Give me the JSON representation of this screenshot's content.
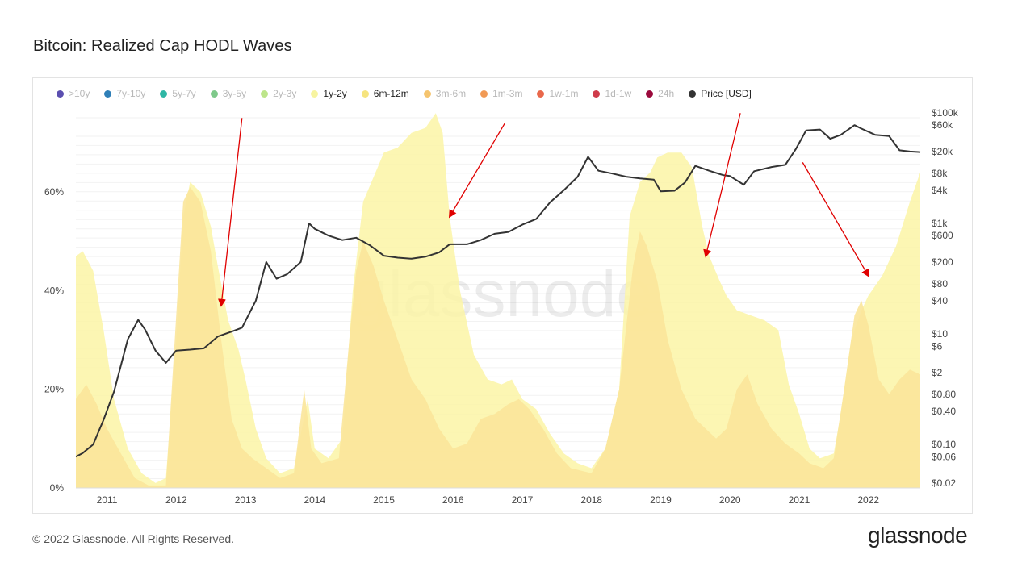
{
  "title": "Bitcoin: Realized Cap HODL Waves",
  "footer": "© 2022 Glassnode. All Rights Reserved.",
  "brand": "glassnode",
  "watermark": "glassnode",
  "legend": [
    {
      "label": ">10y",
      "color": "#5b4fb0",
      "active": false
    },
    {
      "label": "7y-10y",
      "color": "#2f7fb7",
      "active": false
    },
    {
      "label": "5y-7y",
      "color": "#2fb7a5",
      "active": false
    },
    {
      "label": "3y-5y",
      "color": "#7ec98a",
      "active": false
    },
    {
      "label": "2y-3y",
      "color": "#bde58a",
      "active": false
    },
    {
      "label": "1y-2y",
      "color": "#f7f4a0",
      "active": true
    },
    {
      "label": "6m-12m",
      "color": "#f6e47f",
      "active": true
    },
    {
      "label": "3m-6m",
      "color": "#f5c46e",
      "active": false
    },
    {
      "label": "1m-3m",
      "color": "#f19a55",
      "active": false
    },
    {
      "label": "1w-1m",
      "color": "#e9684b",
      "active": false
    },
    {
      "label": "1d-1w",
      "color": "#cf3b4a",
      "active": false
    },
    {
      "label": "24h",
      "color": "#9b0a3c",
      "active": false
    },
    {
      "label": "Price [USD]",
      "color": "#333333",
      "active": true
    }
  ],
  "chart_data": {
    "type": "area",
    "title": "Bitcoin: Realized Cap HODL Waves",
    "xlabel": "",
    "ylabel": "",
    "x_ticks": [
      "2011",
      "2012",
      "2013",
      "2014",
      "2015",
      "2016",
      "2017",
      "2018",
      "2019",
      "2020",
      "2021",
      "2022"
    ],
    "x_range": [
      2010.55,
      2022.75
    ],
    "y_left_ticks": [
      "0%",
      "20%",
      "40%",
      "60%"
    ],
    "y_left_range": [
      0,
      78
    ],
    "y_right_ticks": [
      "$0.02",
      "$0.06",
      "$0.10",
      "$0.40",
      "$0.80",
      "$2",
      "$6",
      "$10",
      "$40",
      "$80",
      "$200",
      "$600",
      "$1k",
      "$4k",
      "$8k",
      "$20k",
      "$60k",
      "$100k"
    ],
    "y_right_range_log": [
      0.02,
      100000
    ],
    "grid": true,
    "series": [
      {
        "name": "1y-2y",
        "color": "#fbf5a6",
        "unit": "%",
        "points": [
          [
            2010.55,
            47
          ],
          [
            2010.65,
            48
          ],
          [
            2010.8,
            44
          ],
          [
            2010.95,
            32
          ],
          [
            2011.1,
            18
          ],
          [
            2011.3,
            8
          ],
          [
            2011.5,
            3
          ],
          [
            2011.7,
            1
          ],
          [
            2011.85,
            2
          ],
          [
            2012.0,
            30
          ],
          [
            2012.1,
            55
          ],
          [
            2012.2,
            62
          ],
          [
            2012.35,
            60
          ],
          [
            2012.5,
            53
          ],
          [
            2012.6,
            45
          ],
          [
            2012.75,
            34
          ],
          [
            2012.9,
            28
          ],
          [
            2013.0,
            22
          ],
          [
            2013.15,
            12
          ],
          [
            2013.3,
            6
          ],
          [
            2013.5,
            3
          ],
          [
            2013.7,
            4
          ],
          [
            2013.9,
            18
          ],
          [
            2014.0,
            8
          ],
          [
            2014.2,
            6
          ],
          [
            2014.4,
            10
          ],
          [
            2014.55,
            40
          ],
          [
            2014.7,
            58
          ],
          [
            2014.85,
            63
          ],
          [
            2015.0,
            68
          ],
          [
            2015.2,
            69
          ],
          [
            2015.4,
            72
          ],
          [
            2015.6,
            73
          ],
          [
            2015.75,
            76
          ],
          [
            2015.85,
            72
          ],
          [
            2015.95,
            55
          ],
          [
            2016.1,
            40
          ],
          [
            2016.3,
            27
          ],
          [
            2016.5,
            22
          ],
          [
            2016.7,
            21
          ],
          [
            2016.85,
            22
          ],
          [
            2017.0,
            18
          ],
          [
            2017.2,
            16
          ],
          [
            2017.4,
            11
          ],
          [
            2017.6,
            7
          ],
          [
            2017.8,
            5
          ],
          [
            2018.0,
            4
          ],
          [
            2018.2,
            8
          ],
          [
            2018.4,
            20
          ],
          [
            2018.55,
            55
          ],
          [
            2018.7,
            62
          ],
          [
            2018.85,
            64
          ],
          [
            2018.95,
            67
          ],
          [
            2019.1,
            68
          ],
          [
            2019.3,
            68
          ],
          [
            2019.45,
            65
          ],
          [
            2019.6,
            53
          ],
          [
            2019.7,
            47
          ],
          [
            2019.85,
            42
          ],
          [
            2019.95,
            39
          ],
          [
            2020.1,
            36
          ],
          [
            2020.3,
            35
          ],
          [
            2020.5,
            34
          ],
          [
            2020.6,
            33
          ],
          [
            2020.7,
            32
          ],
          [
            2020.85,
            21
          ],
          [
            2021.0,
            15
          ],
          [
            2021.15,
            8
          ],
          [
            2021.3,
            6
          ],
          [
            2021.5,
            7
          ],
          [
            2021.6,
            15
          ],
          [
            2021.75,
            30
          ],
          [
            2021.9,
            36
          ],
          [
            2022.0,
            39
          ],
          [
            2022.2,
            43
          ],
          [
            2022.4,
            49
          ],
          [
            2022.6,
            58
          ],
          [
            2022.75,
            64
          ]
        ]
      },
      {
        "name": "6m-12m",
        "color": "#fbe59a",
        "unit": "%",
        "points": [
          [
            2010.55,
            18
          ],
          [
            2010.7,
            21
          ],
          [
            2010.85,
            17
          ],
          [
            2011.0,
            12
          ],
          [
            2011.2,
            7
          ],
          [
            2011.4,
            2
          ],
          [
            2011.6,
            0.5
          ],
          [
            2011.85,
            0.5
          ],
          [
            2012.0,
            35
          ],
          [
            2012.1,
            58
          ],
          [
            2012.2,
            61
          ],
          [
            2012.35,
            58
          ],
          [
            2012.5,
            48
          ],
          [
            2012.65,
            30
          ],
          [
            2012.8,
            14
          ],
          [
            2012.95,
            8
          ],
          [
            2013.1,
            6
          ],
          [
            2013.3,
            4
          ],
          [
            2013.5,
            2
          ],
          [
            2013.7,
            3
          ],
          [
            2013.85,
            20
          ],
          [
            2013.95,
            8
          ],
          [
            2014.1,
            5
          ],
          [
            2014.35,
            6
          ],
          [
            2014.5,
            30
          ],
          [
            2014.6,
            44
          ],
          [
            2014.7,
            50
          ],
          [
            2014.85,
            45
          ],
          [
            2015.0,
            38
          ],
          [
            2015.2,
            30
          ],
          [
            2015.4,
            22
          ],
          [
            2015.6,
            18
          ],
          [
            2015.8,
            12
          ],
          [
            2016.0,
            8
          ],
          [
            2016.2,
            9
          ],
          [
            2016.4,
            14
          ],
          [
            2016.6,
            15
          ],
          [
            2016.8,
            17
          ],
          [
            2016.95,
            18
          ],
          [
            2017.1,
            16
          ],
          [
            2017.3,
            12
          ],
          [
            2017.5,
            7
          ],
          [
            2017.7,
            4
          ],
          [
            2018.0,
            3
          ],
          [
            2018.2,
            8
          ],
          [
            2018.4,
            20
          ],
          [
            2018.6,
            45
          ],
          [
            2018.7,
            52
          ],
          [
            2018.8,
            49
          ],
          [
            2018.95,
            42
          ],
          [
            2019.1,
            30
          ],
          [
            2019.3,
            20
          ],
          [
            2019.5,
            14
          ],
          [
            2019.65,
            12
          ],
          [
            2019.8,
            10
          ],
          [
            2019.95,
            12
          ],
          [
            2020.1,
            20
          ],
          [
            2020.25,
            23
          ],
          [
            2020.4,
            17
          ],
          [
            2020.6,
            12
          ],
          [
            2020.8,
            9
          ],
          [
            2021.0,
            7
          ],
          [
            2021.15,
            5
          ],
          [
            2021.35,
            4
          ],
          [
            2021.5,
            6
          ],
          [
            2021.65,
            20
          ],
          [
            2021.8,
            35
          ],
          [
            2021.9,
            38
          ],
          [
            2022.0,
            33
          ],
          [
            2022.15,
            22
          ],
          [
            2022.3,
            19
          ],
          [
            2022.45,
            22
          ],
          [
            2022.6,
            24
          ],
          [
            2022.75,
            23
          ]
        ]
      },
      {
        "name": "Price [USD]",
        "color": "#333333",
        "unit": "USD (log)",
        "points": [
          [
            2010.55,
            0.06
          ],
          [
            2010.65,
            0.07
          ],
          [
            2010.8,
            0.1
          ],
          [
            2010.95,
            0.28
          ],
          [
            2011.1,
            0.9
          ],
          [
            2011.3,
            8
          ],
          [
            2011.45,
            18
          ],
          [
            2011.55,
            12
          ],
          [
            2011.7,
            5
          ],
          [
            2011.85,
            3
          ],
          [
            2012.0,
            5
          ],
          [
            2012.2,
            5.2
          ],
          [
            2012.4,
            5.5
          ],
          [
            2012.6,
            9
          ],
          [
            2012.8,
            11
          ],
          [
            2012.95,
            13
          ],
          [
            2013.15,
            40
          ],
          [
            2013.3,
            200
          ],
          [
            2013.45,
            100
          ],
          [
            2013.6,
            120
          ],
          [
            2013.8,
            200
          ],
          [
            2013.92,
            1000
          ],
          [
            2014.0,
            800
          ],
          [
            2014.2,
            600
          ],
          [
            2014.4,
            500
          ],
          [
            2014.6,
            550
          ],
          [
            2014.8,
            400
          ],
          [
            2015.0,
            260
          ],
          [
            2015.2,
            240
          ],
          [
            2015.4,
            230
          ],
          [
            2015.6,
            250
          ],
          [
            2015.8,
            300
          ],
          [
            2015.95,
            420
          ],
          [
            2016.2,
            420
          ],
          [
            2016.4,
            500
          ],
          [
            2016.6,
            650
          ],
          [
            2016.8,
            700
          ],
          [
            2017.0,
            950
          ],
          [
            2017.2,
            1200
          ],
          [
            2017.4,
            2400
          ],
          [
            2017.6,
            4000
          ],
          [
            2017.8,
            7000
          ],
          [
            2017.95,
            16000
          ],
          [
            2018.1,
            9000
          ],
          [
            2018.3,
            8000
          ],
          [
            2018.5,
            7000
          ],
          [
            2018.7,
            6500
          ],
          [
            2018.9,
            6200
          ],
          [
            2019.0,
            3800
          ],
          [
            2019.2,
            3900
          ],
          [
            2019.35,
            5500
          ],
          [
            2019.5,
            11000
          ],
          [
            2019.7,
            9000
          ],
          [
            2019.9,
            7500
          ],
          [
            2020.0,
            7200
          ],
          [
            2020.2,
            5000
          ],
          [
            2020.35,
            8800
          ],
          [
            2020.6,
            10500
          ],
          [
            2020.8,
            11500
          ],
          [
            2020.95,
            22000
          ],
          [
            2021.1,
            48000
          ],
          [
            2021.3,
            50000
          ],
          [
            2021.45,
            34000
          ],
          [
            2021.6,
            40000
          ],
          [
            2021.8,
            60000
          ],
          [
            2021.9,
            52000
          ],
          [
            2022.1,
            40000
          ],
          [
            2022.3,
            38000
          ],
          [
            2022.45,
            21000
          ],
          [
            2022.6,
            20000
          ],
          [
            2022.75,
            19500
          ]
        ]
      }
    ],
    "annotations": [
      {
        "type": "arrow",
        "color": "#e00000",
        "from": [
          2012.95,
          75
        ],
        "to": [
          2012.65,
          37
        ]
      },
      {
        "type": "arrow",
        "color": "#e00000",
        "from": [
          2016.75,
          74
        ],
        "to": [
          2015.95,
          55
        ]
      },
      {
        "type": "arrow",
        "color": "#e00000",
        "from": [
          2020.15,
          76
        ],
        "to": [
          2019.65,
          47
        ]
      },
      {
        "type": "arrow",
        "color": "#e00000",
        "from": [
          2021.05,
          66
        ],
        "to": [
          2022.0,
          43
        ]
      }
    ]
  }
}
